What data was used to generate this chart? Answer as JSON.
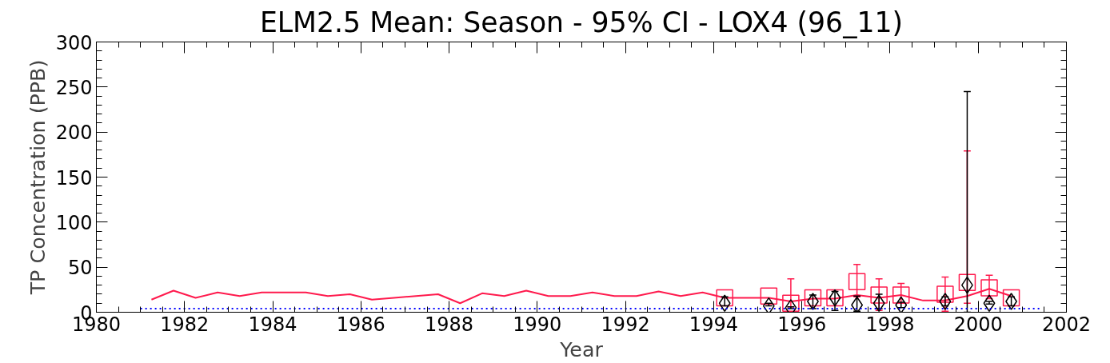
{
  "chart_data": {
    "type": "line",
    "title": "ELM2.5 Mean: Season - 95% CI - LOX4 (96_11)",
    "xlabel": "Year",
    "ylabel": "TP Concentration (PPB)",
    "xlim": [
      1980,
      2002
    ],
    "xticks": [
      1980,
      1982,
      1984,
      1986,
      1988,
      1990,
      1992,
      1994,
      1996,
      1998,
      2000,
      2002
    ],
    "ylim": [
      0,
      300
    ],
    "yticks": [
      0,
      50,
      100,
      150,
      200,
      250,
      300
    ],
    "grid": false,
    "series": [
      {
        "color": "#ff1a4d",
        "line_style": "solid",
        "x": [
          1981.25,
          1981.75,
          1982.25,
          1982.75,
          1983.25,
          1983.75,
          1984.25,
          1984.75,
          1985.25,
          1985.75,
          1986.25,
          1986.75,
          1987.25,
          1987.75,
          1988.25,
          1988.75,
          1989.25,
          1989.75,
          1990.25,
          1990.75,
          1991.25,
          1991.75,
          1992.25,
          1992.75,
          1993.25,
          1993.75,
          1994.25,
          1995.25,
          1995.75,
          1996.25,
          1996.75,
          1997.25,
          1997.75,
          1998.25,
          1998.75,
          1999.25,
          1999.75,
          2000.25,
          2000.75
        ],
        "values": [
          14,
          24,
          16,
          22,
          18,
          22,
          22,
          22,
          18,
          20,
          14,
          16,
          18,
          20,
          10,
          21,
          18,
          24,
          18,
          18,
          22,
          18,
          18,
          23,
          18,
          22,
          16,
          16,
          12,
          15,
          15,
          19,
          16,
          19,
          13,
          13,
          18,
          26,
          18
        ]
      },
      {
        "type": "scatter",
        "marker": "square",
        "color": "#ff1a4d",
        "x": [
          1994.25,
          1995.25,
          1995.75,
          1996.25,
          1996.75,
          1997.25,
          1997.75,
          1998.25,
          1999.25,
          1999.75,
          2000.25,
          2000.75
        ],
        "values": [
          16,
          18,
          10,
          16,
          16,
          34,
          19,
          19,
          20,
          33,
          27,
          16
        ],
        "errors": [
          null,
          null,
          [
            6,
            37
          ],
          null,
          null,
          [
            17,
            53
          ],
          [
            2,
            37
          ],
          [
            10,
            32
          ],
          [
            1,
            39
          ],
          [
            10,
            179
          ],
          [
            15,
            41
          ],
          null
        ]
      },
      {
        "type": "scatter",
        "marker": "diamond",
        "color": "#000000",
        "x": [
          1994.25,
          1995.25,
          1995.75,
          1996.25,
          1996.75,
          1997.25,
          1997.75,
          1998.25,
          1999.25,
          1999.75,
          2000.25,
          2000.75
        ],
        "values": [
          10,
          7,
          5,
          12,
          16,
          8,
          10,
          8,
          12,
          30,
          10,
          12
        ],
        "errors": [
          [
            7,
            17
          ],
          [
            7,
            10
          ],
          [
            4,
            6
          ],
          [
            4,
            19
          ],
          [
            2,
            23
          ],
          [
            1,
            18
          ],
          [
            4,
            20
          ],
          [
            5,
            11
          ],
          [
            7,
            17
          ],
          [
            0,
            245
          ],
          [
            9,
            12
          ],
          [
            7,
            17
          ]
        ]
      },
      {
        "color": "#0000ff",
        "line_style": "dotted",
        "x": [
          1981,
          2001.4
        ],
        "values": [
          4,
          4
        ]
      }
    ]
  }
}
